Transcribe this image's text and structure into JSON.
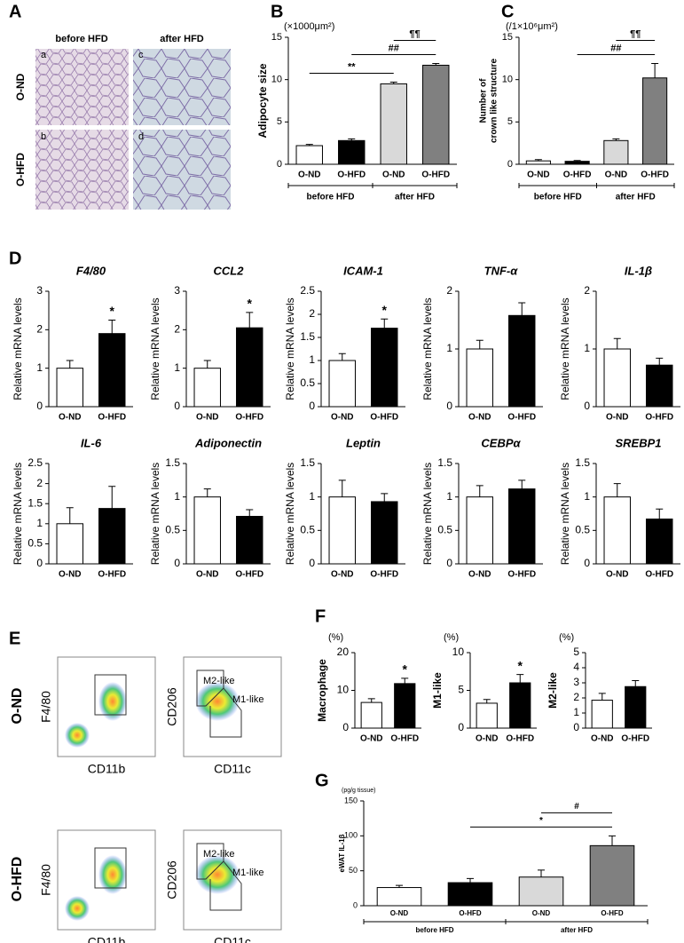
{
  "panel_letters": [
    "A",
    "B",
    "C",
    "D",
    "E",
    "F",
    "G"
  ],
  "panel_A": {
    "columns": [
      "before HFD",
      "after HFD"
    ],
    "rows": [
      "O-ND",
      "O-HFD"
    ],
    "subpanels": [
      [
        "a",
        "c"
      ],
      [
        "b",
        "d"
      ]
    ]
  },
  "panel_E": {
    "rows": [
      "O-ND",
      "O-HFD"
    ],
    "x_labels": [
      "CD11b",
      "CD11c"
    ],
    "y_labels": [
      "F4/80",
      "CD206"
    ],
    "gates": [
      "M2-like",
      "M1-like"
    ]
  },
  "chart_data": [
    {
      "type": "bar",
      "unit": "(×1000μm²)",
      "ylabel": [
        "Adipocyte size"
      ],
      "categories": [
        "O-ND",
        "O-HFD",
        "O-ND",
        "O-HFD"
      ],
      "groups": [
        "before HFD",
        "after HFD"
      ],
      "values": [
        2.2,
        2.8,
        9.5,
        11.7
      ],
      "errors": [
        0.15,
        0.2,
        0.2,
        0.2
      ],
      "colors": [
        "#ffffff",
        "#000000",
        "#d9d9d9",
        "#808080"
      ],
      "ylim": [
        0,
        15
      ],
      "yticks": [
        0,
        5,
        10,
        15
      ],
      "annotations": [
        {
          "text": "**",
          "from": 0,
          "to": 2
        },
        {
          "text": "##",
          "from": 1,
          "to": 3
        },
        {
          "text": "¶¶",
          "from": 2,
          "to": 3
        }
      ]
    },
    {
      "type": "bar",
      "unit": "(/1×10⁶μm²)",
      "ylabel": [
        "Number of",
        "crown like structure"
      ],
      "categories": [
        "O-ND",
        "O-HFD",
        "O-ND",
        "O-HFD"
      ],
      "groups": [
        "before HFD",
        "after HFD"
      ],
      "values": [
        0.4,
        0.35,
        2.8,
        10.2
      ],
      "errors": [
        0.15,
        0.1,
        0.2,
        1.7
      ],
      "colors": [
        "#ffffff",
        "#000000",
        "#d9d9d9",
        "#808080"
      ],
      "ylim": [
        0,
        15
      ],
      "yticks": [
        0,
        5,
        10,
        15
      ],
      "annotations": [
        {
          "text": "##",
          "from": 1,
          "to": 3
        },
        {
          "text": "¶¶",
          "from": 2,
          "to": 3
        }
      ]
    },
    {
      "type": "bar",
      "title": "F4/80",
      "ylabel": [
        "Relative mRNA levels"
      ],
      "categories": [
        "O-ND",
        "O-HFD"
      ],
      "values": [
        1,
        1.9
      ],
      "errors": [
        0.2,
        0.35
      ],
      "colors": [
        "#ffffff",
        "#000000"
      ],
      "ylim": [
        0,
        3
      ],
      "yticks": [
        0,
        1,
        2,
        3
      ],
      "annotations": [
        {
          "text": "*",
          "bar": 1
        }
      ]
    },
    {
      "type": "bar",
      "title": "CCL2",
      "ylabel": [
        "Relative mRNA levels"
      ],
      "categories": [
        "O-ND",
        "O-HFD"
      ],
      "values": [
        1,
        2.05
      ],
      "errors": [
        0.2,
        0.4
      ],
      "colors": [
        "#ffffff",
        "#000000"
      ],
      "ylim": [
        0,
        3
      ],
      "yticks": [
        0,
        1,
        2,
        3
      ],
      "annotations": [
        {
          "text": "*",
          "bar": 1
        }
      ]
    },
    {
      "type": "bar",
      "title": "ICAM-1",
      "ylabel": [
        "Relative mRNA levels"
      ],
      "categories": [
        "O-ND",
        "O-HFD"
      ],
      "values": [
        1,
        1.7
      ],
      "errors": [
        0.15,
        0.2
      ],
      "colors": [
        "#ffffff",
        "#000000"
      ],
      "ylim": [
        0,
        2.5
      ],
      "yticks": [
        0,
        0.5,
        1,
        1.5,
        2,
        2.5
      ],
      "annotations": [
        {
          "text": "*",
          "bar": 1
        }
      ]
    },
    {
      "type": "bar",
      "title": "TNF-α",
      "ylabel": [
        "Relative mRNA levels"
      ],
      "categories": [
        "O-ND",
        "O-HFD"
      ],
      "values": [
        1,
        1.58
      ],
      "errors": [
        0.15,
        0.22
      ],
      "colors": [
        "#ffffff",
        "#000000"
      ],
      "ylim": [
        0,
        2
      ],
      "yticks": [
        0,
        1,
        2
      ],
      "annotations": []
    },
    {
      "type": "bar",
      "title": "IL-1β",
      "ylabel": [
        "Relative mRNA levels"
      ],
      "categories": [
        "O-ND",
        "O-HFD"
      ],
      "values": [
        1,
        0.72
      ],
      "errors": [
        0.18,
        0.12
      ],
      "colors": [
        "#ffffff",
        "#000000"
      ],
      "ylim": [
        0,
        2
      ],
      "yticks": [
        0,
        1,
        2
      ],
      "annotations": []
    },
    {
      "type": "bar",
      "title": "IL-6",
      "ylabel": [
        "Relative mRNA levels"
      ],
      "categories": [
        "O-ND",
        "O-HFD"
      ],
      "values": [
        1,
        1.38
      ],
      "errors": [
        0.4,
        0.55
      ],
      "colors": [
        "#ffffff",
        "#000000"
      ],
      "ylim": [
        0,
        2.5
      ],
      "yticks": [
        0,
        0.5,
        1,
        1.5,
        2,
        2.5
      ],
      "annotations": []
    },
    {
      "type": "bar",
      "title": "Adiponectin",
      "ylabel": [
        "Relative mRNA levels"
      ],
      "categories": [
        "O-ND",
        "O-HFD"
      ],
      "values": [
        1,
        0.71
      ],
      "errors": [
        0.12,
        0.1
      ],
      "colors": [
        "#ffffff",
        "#000000"
      ],
      "ylim": [
        0,
        1.5
      ],
      "yticks": [
        0,
        0.5,
        1,
        1.5
      ],
      "annotations": []
    },
    {
      "type": "bar",
      "title": "Leptin",
      "ylabel": [
        "Relative mRNA levels"
      ],
      "categories": [
        "O-ND",
        "O-HFD"
      ],
      "values": [
        1,
        0.93
      ],
      "errors": [
        0.25,
        0.12
      ],
      "colors": [
        "#ffffff",
        "#000000"
      ],
      "ylim": [
        0,
        1.5
      ],
      "yticks": [
        0,
        0.5,
        1,
        1.5
      ],
      "annotations": []
    },
    {
      "type": "bar",
      "title": "CEBPα",
      "ylabel": [
        "Relative mRNA levels"
      ],
      "categories": [
        "O-ND",
        "O-HFD"
      ],
      "values": [
        1,
        1.12
      ],
      "errors": [
        0.17,
        0.13
      ],
      "colors": [
        "#ffffff",
        "#000000"
      ],
      "ylim": [
        0,
        1.5
      ],
      "yticks": [
        0,
        0.5,
        1,
        1.5
      ],
      "annotations": []
    },
    {
      "type": "bar",
      "title": "SREBP1",
      "ylabel": [
        "Relative mRNA levels"
      ],
      "categories": [
        "O-ND",
        "O-HFD"
      ],
      "values": [
        1,
        0.67
      ],
      "errors": [
        0.2,
        0.15
      ],
      "colors": [
        "#ffffff",
        "#000000"
      ],
      "ylim": [
        0,
        1.5
      ],
      "yticks": [
        0,
        0.5,
        1,
        1.5
      ],
      "annotations": []
    },
    {
      "type": "bar",
      "unit": "(%)",
      "ylabel": [
        "Macrophage"
      ],
      "categories": [
        "O-ND",
        "O-HFD"
      ],
      "values": [
        6.8,
        11.8
      ],
      "errors": [
        1,
        1.4
      ],
      "colors": [
        "#ffffff",
        "#000000"
      ],
      "ylim": [
        0,
        20
      ],
      "yticks": [
        0,
        10,
        20
      ],
      "annotations": [
        {
          "text": "*",
          "bar": 1
        }
      ]
    },
    {
      "type": "bar",
      "unit": "(%)",
      "ylabel": [
        "M1-like"
      ],
      "categories": [
        "O-ND",
        "O-HFD"
      ],
      "values": [
        3.3,
        6
      ],
      "errors": [
        0.5,
        1.1
      ],
      "colors": [
        "#ffffff",
        "#000000"
      ],
      "ylim": [
        0,
        10
      ],
      "yticks": [
        0,
        5,
        10
      ],
      "annotations": [
        {
          "text": "*",
          "bar": 1
        }
      ]
    },
    {
      "type": "bar",
      "unit": "(%)",
      "ylabel": [
        "M2-like"
      ],
      "categories": [
        "O-ND",
        "O-HFD"
      ],
      "values": [
        1.85,
        2.75
      ],
      "errors": [
        0.45,
        0.4
      ],
      "colors": [
        "#ffffff",
        "#000000"
      ],
      "ylim": [
        0,
        5
      ],
      "yticks": [
        0,
        1,
        2,
        3,
        4,
        5
      ],
      "annotations": []
    },
    {
      "type": "bar",
      "unit": "(pg/g tissue)",
      "ylabel": [
        "eWAT IL-1β"
      ],
      "categories": [
        "O-ND",
        "O-HFD",
        "O-ND",
        "O-HFD"
      ],
      "groups": [
        "before HFD",
        "after HFD"
      ],
      "values": [
        26,
        33,
        41,
        86
      ],
      "errors": [
        3,
        6,
        10,
        14
      ],
      "colors": [
        "#ffffff",
        "#000000",
        "#d9d9d9",
        "#808080"
      ],
      "ylim": [
        0,
        150
      ],
      "yticks": [
        0,
        50,
        100,
        150
      ],
      "annotations": [
        {
          "text": "*",
          "from": 1,
          "to": 3
        },
        {
          "text": "#",
          "from": 2,
          "to": 3
        }
      ]
    }
  ]
}
